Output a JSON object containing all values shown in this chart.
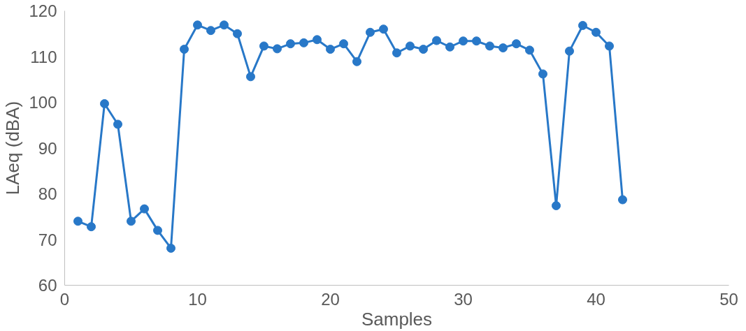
{
  "chart_data": {
    "type": "line",
    "xlabel": "Samples",
    "ylabel": "LAeq (dBA)",
    "x": [
      1,
      2,
      3,
      4,
      5,
      6,
      7,
      8,
      9,
      10,
      11,
      12,
      13,
      14,
      15,
      16,
      17,
      18,
      19,
      20,
      21,
      22,
      23,
      24,
      25,
      26,
      27,
      28,
      29,
      30,
      31,
      32,
      33,
      34,
      35,
      36,
      37,
      38,
      39,
      40,
      41,
      42
    ],
    "series": [
      {
        "color": "#2878c8",
        "values": [
          74.0,
          72.8,
          99.7,
          95.2,
          74.0,
          76.7,
          72.0,
          68.1,
          111.6,
          116.9,
          115.7,
          116.9,
          115.0,
          105.6,
          112.3,
          111.7,
          112.8,
          113.0,
          113.7,
          111.6,
          112.8,
          108.9,
          115.3,
          116.0,
          110.8,
          112.3,
          111.6,
          113.5,
          112.1,
          113.4,
          113.4,
          112.3,
          111.9,
          112.8,
          111.4,
          106.2,
          77.4,
          111.2,
          116.8,
          115.3,
          112.3,
          78.7
        ]
      }
    ],
    "xlim": [
      0,
      50
    ],
    "xticks": [
      0,
      10,
      20,
      30,
      40,
      50
    ],
    "ylim": [
      60,
      120
    ],
    "yticks": [
      60,
      70,
      80,
      90,
      100,
      110,
      120
    ],
    "grid": false,
    "marker": "circle",
    "line_style": "solid"
  }
}
